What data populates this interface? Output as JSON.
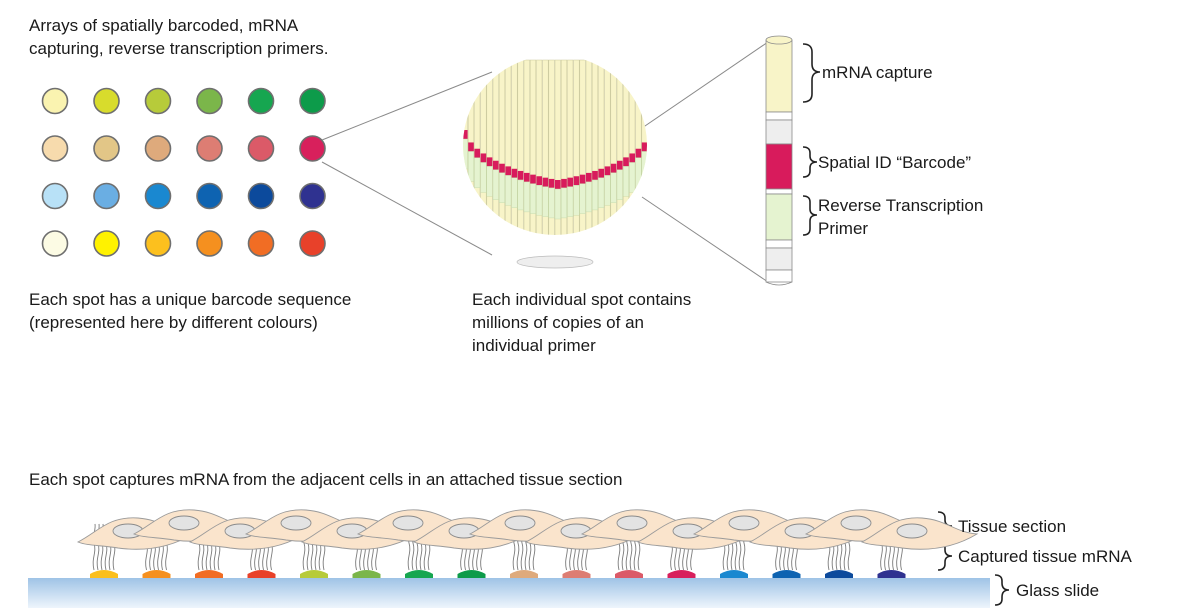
{
  "texts": {
    "array_title": [
      "Arrays of  spatially barcoded, mRNA",
      "capturing, reverse transcription primers."
    ],
    "spot_caption": [
      "Each spot has a unique barcode sequence",
      "(represented here by different colours)"
    ],
    "primer_caption": [
      "Each individual spot contains",
      "millions of copies of an",
      "individual primer"
    ],
    "mrna_capture": "mRNA capture",
    "spatial_id": "Spatial ID “Barcode”",
    "rt_primer": [
      "Reverse Transcription",
      "Primer"
    ],
    "tissue_title": "Each spot captures mRNA from the adjacent cells in an attached tissue section",
    "tissue_section": "Tissue section",
    "captured_mrna": "Captured tissue mRNA",
    "glass_slide": "Glass slide"
  },
  "spot_grid": [
    [
      "#faf3b0",
      "#d8dc2c",
      "#b7cb3a",
      "#7bb64a",
      "#16a650",
      "#0d9b4a"
    ],
    [
      "#f7dbad",
      "#e2c687",
      "#deaa7c",
      "#dd7d73",
      "#db5a68",
      "#d8205c"
    ],
    [
      "#b8e1f7",
      "#6aaee3",
      "#1a88d0",
      "#0e63b1",
      "#0c4a9c",
      "#2f3290"
    ],
    [
      "#fcfbe4",
      "#fff200",
      "#fcc01e",
      "#f5901f",
      "#f16d24",
      "#e8412a"
    ]
  ],
  "slide_spots": [
    "#fbbf1d",
    "#f5901f",
    "#f16d24",
    "#e8412a",
    "#b7cb3a",
    "#7bb64a",
    "#16a650",
    "#0d9b4a",
    "#deaa7c",
    "#dd7d73",
    "#db5a68",
    "#d8205c",
    "#1a88d0",
    "#0e63b1",
    "#0c4a9c",
    "#2f3290"
  ],
  "colors": {
    "capture": "#f8f4c8",
    "barcode": "#d81b5c",
    "primer": "#e5f3d0",
    "cell": "#fae4cc",
    "nucleus": "#e3e3e3",
    "slide_top": "#9fc3e6",
    "slide_bottom": "#eef5fc"
  }
}
